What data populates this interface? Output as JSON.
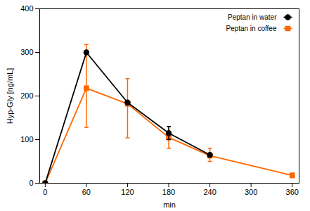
{
  "chart_data": {
    "type": "line",
    "xlabel": "min",
    "ylabel": "Hyp-Gly [ng/mL]",
    "xlim": [
      -8,
      370
    ],
    "xticks": [
      0,
      60,
      120,
      180,
      240,
      300,
      360
    ],
    "ylim": [
      0,
      400
    ],
    "yticks": [
      0,
      100,
      200,
      300,
      400
    ],
    "grid": false,
    "legend": "upper right",
    "series": [
      {
        "name": "Peptan in water",
        "color": "#000000",
        "marker": "circle",
        "x": [
          0,
          60,
          120,
          180,
          240
        ],
        "values": [
          0,
          300,
          185,
          115,
          65
        ],
        "yerr_lower": [
          0,
          0,
          0,
          15,
          0
        ],
        "yerr_upper": [
          0,
          0,
          0,
          15,
          0
        ]
      },
      {
        "name": "Peptan in coffee",
        "color": "#FF6600",
        "marker": "square",
        "x": [
          0,
          60,
          120,
          180,
          240,
          360
        ],
        "values": [
          0,
          218,
          182,
          105,
          63,
          18
        ],
        "yerr_lower": [
          0,
          90,
          78,
          25,
          13,
          5
        ],
        "yerr_upper": [
          0,
          100,
          58,
          25,
          17,
          5
        ]
      }
    ]
  }
}
